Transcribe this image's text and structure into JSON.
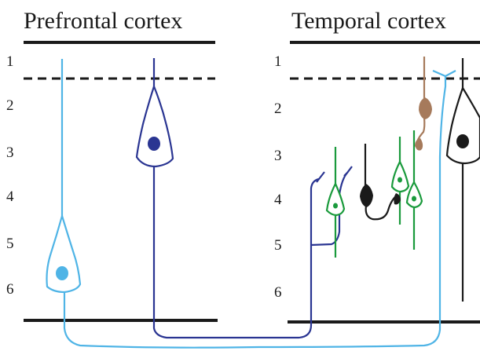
{
  "panels": {
    "left": {
      "title": "Prefrontal cortex",
      "layers": [
        "1",
        "2",
        "3",
        "4",
        "5",
        "6"
      ]
    },
    "right": {
      "title": "Temporal cortex",
      "layers": [
        "1",
        "2",
        "3",
        "4",
        "5",
        "6"
      ]
    }
  },
  "colors": {
    "light_blue": "#4fb4e6",
    "dark_blue": "#2a3592",
    "green": "#1a9a3c",
    "brown": "#a67a5b",
    "black": "#1a1a1a"
  }
}
